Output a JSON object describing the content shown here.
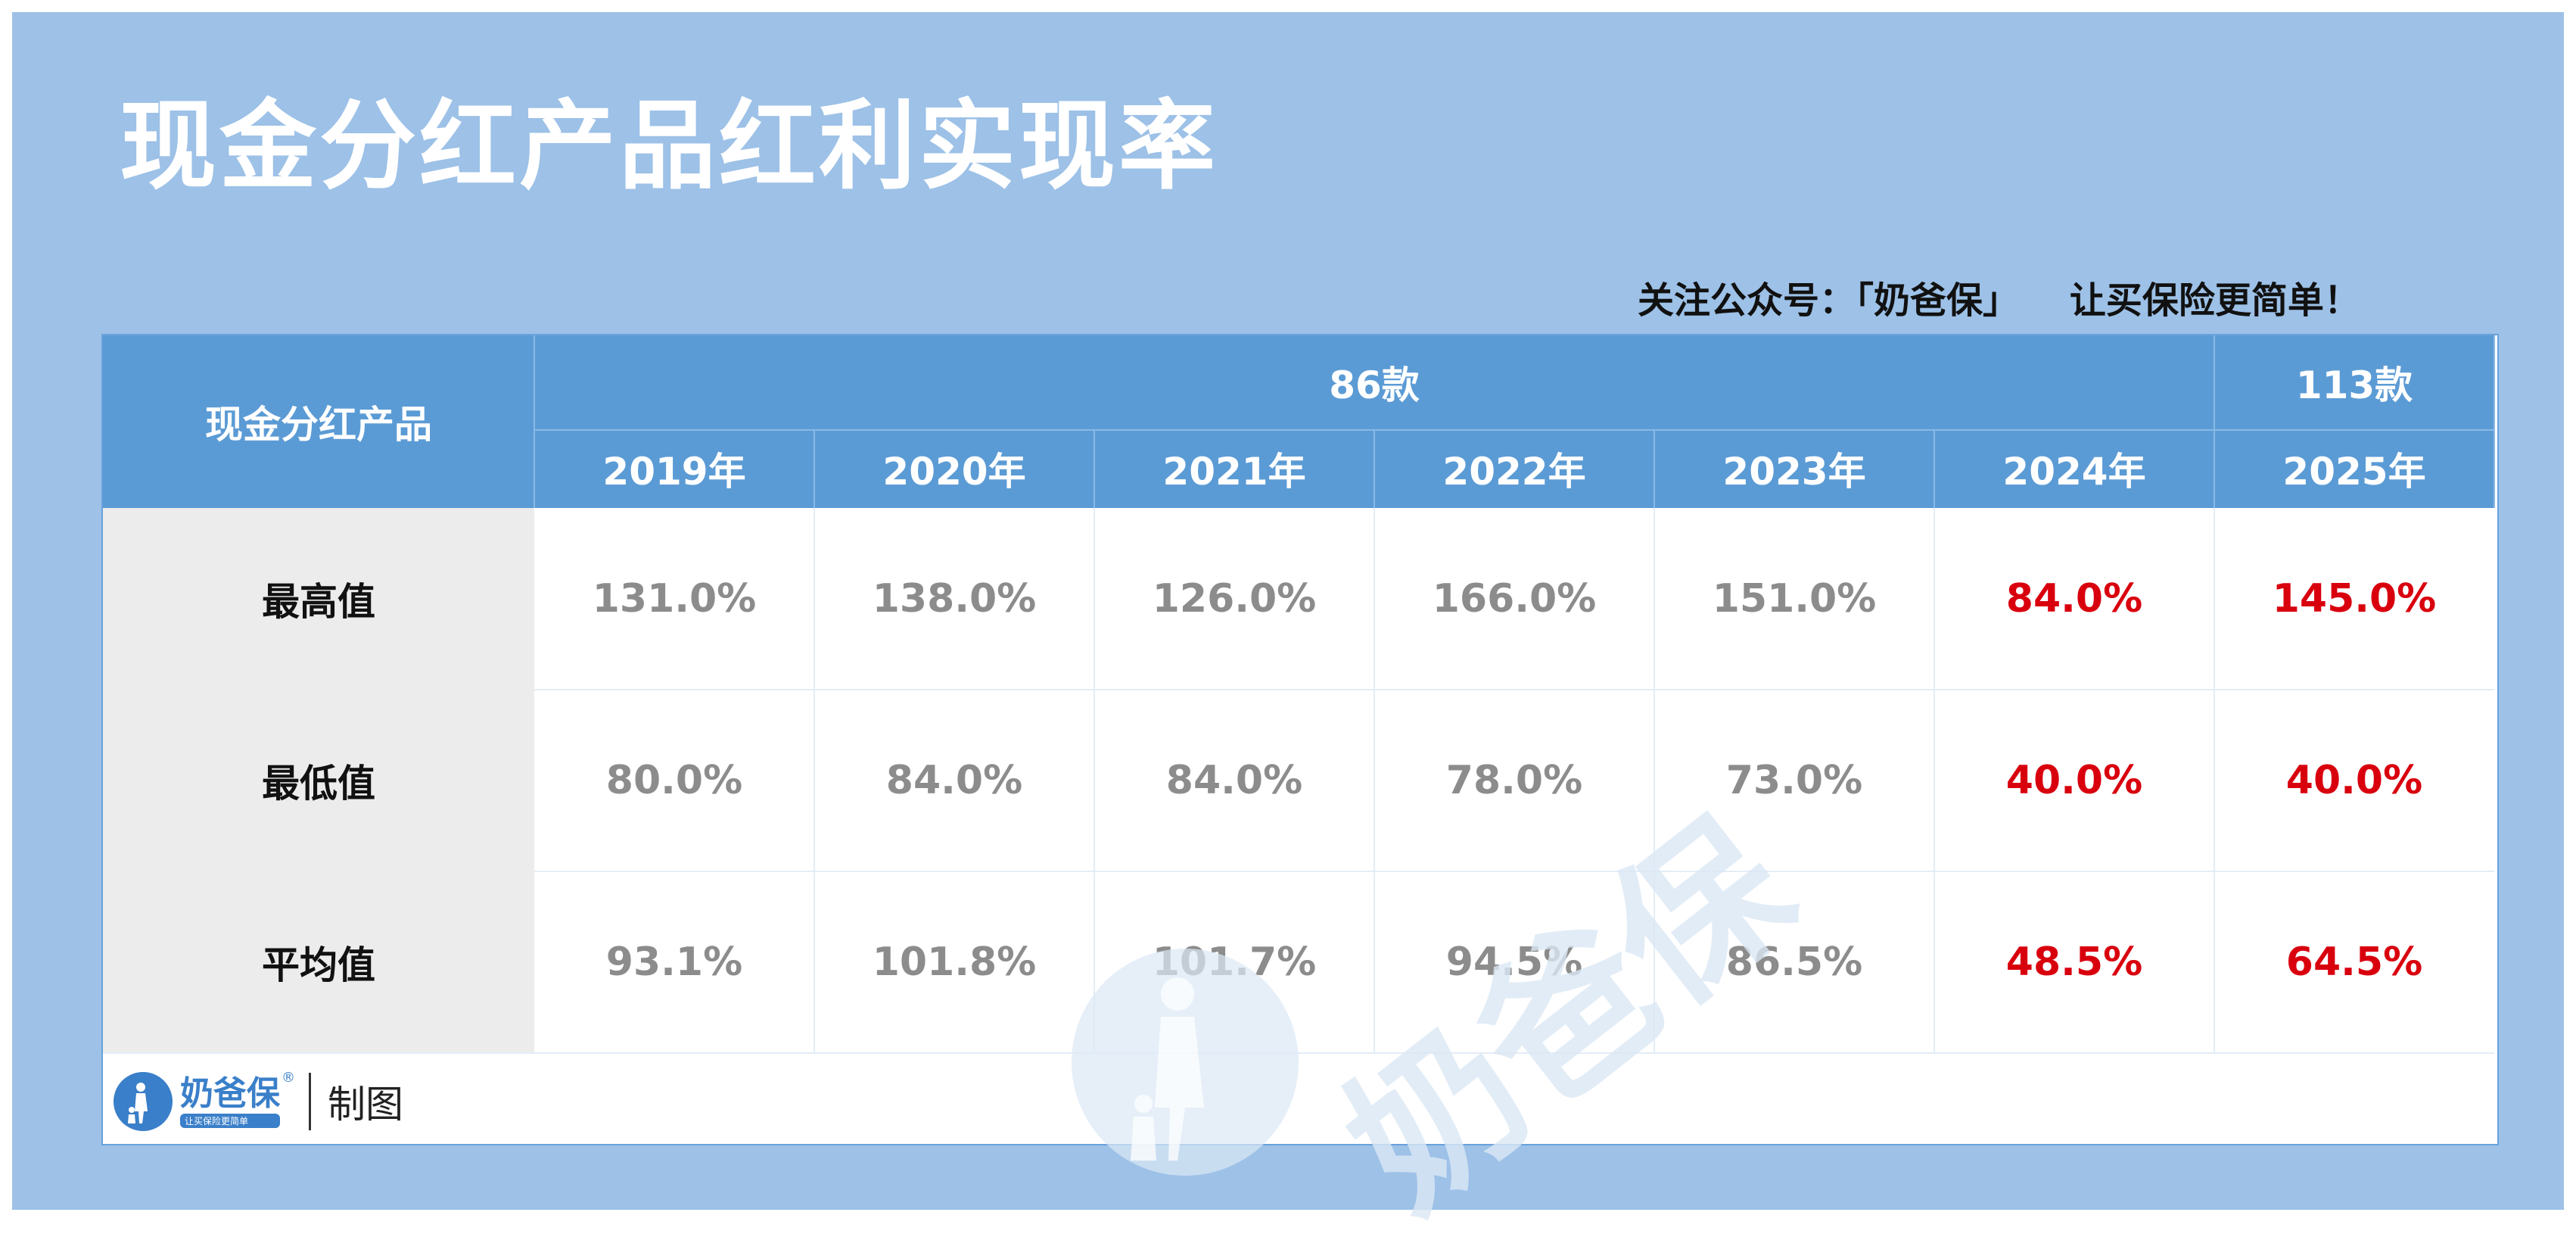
{
  "title": "现金分红产品红利实现率",
  "slogan": "关注公众号：「奶爸保」    让买保险更简单！",
  "chart_data": {
    "type": "table",
    "corner_header": "现金分红产品",
    "group_headers": [
      {
        "label": "86款",
        "span": 6
      },
      {
        "label": "113款",
        "span": 1
      }
    ],
    "columns": [
      "2019年",
      "2020年",
      "2021年",
      "2022年",
      "2023年",
      "2024年",
      "2025年"
    ],
    "rows": [
      {
        "label": "最高值",
        "values": [
          "131.0%",
          "138.0%",
          "126.0%",
          "166.0%",
          "151.0%",
          "84.0%",
          "145.0%"
        ]
      },
      {
        "label": "最低值",
        "values": [
          "80.0%",
          "84.0%",
          "84.0%",
          "78.0%",
          "73.0%",
          "40.0%",
          "40.0%"
        ]
      },
      {
        "label": "平均值",
        "values": [
          "93.1%",
          "101.8%",
          "101.7%",
          "94.5%",
          "86.5%",
          "48.5%",
          "64.5%"
        ]
      }
    ],
    "highlight_columns": [
      "2024年",
      "2025年"
    ],
    "colors": {
      "header": "#5b9bd5",
      "normal_value": "#8c8c8c",
      "highlight_value": "#d9000e",
      "row_label_bg": "#ececec"
    }
  },
  "footer": {
    "brand": "奶爸保",
    "brand_mark": "®",
    "brand_tagline": "让买保险更简单",
    "label": "制图"
  },
  "watermark": {
    "text": "奶爸保"
  }
}
